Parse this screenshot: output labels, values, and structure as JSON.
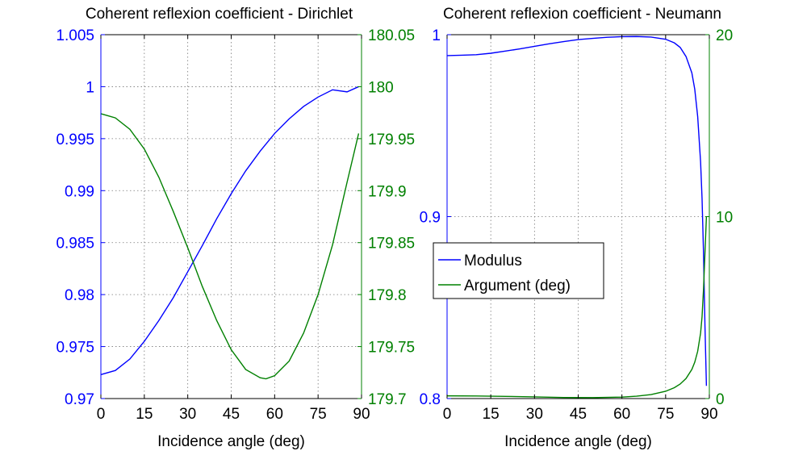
{
  "chart_data": [
    {
      "type": "line",
      "title": "Coherent reflexion coefficient - Dirichlet",
      "xlabel": "Incidence angle (deg)",
      "xlim": [
        0,
        90
      ],
      "xticks": [
        0,
        15,
        30,
        45,
        60,
        75,
        90
      ],
      "grid": true,
      "axes": {
        "left": {
          "color": "#0000ff",
          "ylim": [
            0.97,
            1.005
          ],
          "ticks": [
            0.97,
            0.975,
            0.98,
            0.985,
            0.99,
            0.995,
            1,
            1.005
          ],
          "tick_labels": [
            "0.97",
            "0.975",
            "0.98",
            "0.985",
            "0.99",
            "0.995",
            "1",
            "1.005"
          ]
        },
        "right": {
          "color": "#008000",
          "ylim": [
            179.7,
            180.05
          ],
          "ticks": [
            179.7,
            179.75,
            179.8,
            179.85,
            179.9,
            179.95,
            180,
            180.05
          ],
          "tick_labels": [
            "179.7",
            "179.75",
            "179.8",
            "179.85",
            "179.9",
            "179.95",
            "180",
            "180.05"
          ]
        }
      },
      "series": [
        {
          "axis": "left",
          "color": "#0000ff",
          "x": [
            0,
            5,
            10,
            15,
            20,
            25,
            30,
            35,
            40,
            45,
            50,
            55,
            60,
            65,
            70,
            75,
            80,
            85,
            89
          ],
          "y": [
            0.9723,
            0.9727,
            0.9738,
            0.9755,
            0.9775,
            0.9797,
            0.9822,
            0.9847,
            0.9873,
            0.9897,
            0.9919,
            0.9938,
            0.9955,
            0.9969,
            0.9981,
            0.999,
            0.9997,
            0.9995,
            1.0
          ]
        },
        {
          "axis": "right",
          "color": "#008000",
          "x": [
            0,
            5,
            10,
            15,
            20,
            25,
            30,
            35,
            40,
            45,
            50,
            55,
            57,
            60,
            65,
            70,
            75,
            80,
            85,
            89
          ],
          "y": [
            179.974,
            179.97,
            179.959,
            179.94,
            179.913,
            179.88,
            179.845,
            179.808,
            179.775,
            179.747,
            179.728,
            179.72,
            179.719,
            179.722,
            179.736,
            179.763,
            179.8,
            179.848,
            179.908,
            179.955
          ]
        }
      ]
    },
    {
      "type": "line",
      "title": "Coherent reflexion coefficient - Neumann",
      "xlabel": "Incidence angle (deg)",
      "xlim": [
        0,
        90
      ],
      "xticks": [
        0,
        15,
        30,
        45,
        60,
        75,
        90
      ],
      "grid": true,
      "legend": {
        "placement": "center-left",
        "entries": [
          {
            "label": "Modulus",
            "color": "#0000ff"
          },
          {
            "label": "Argument (deg)",
            "color": "#008000"
          }
        ]
      },
      "axes": {
        "left": {
          "color": "#0000ff",
          "ylim": [
            0.8,
            1
          ],
          "ticks": [
            0.8,
            0.9,
            1
          ],
          "tick_labels": [
            "0.8",
            "0.9",
            "1"
          ]
        },
        "right": {
          "color": "#008000",
          "ylim": [
            0,
            20
          ],
          "ticks": [
            0,
            10,
            20
          ],
          "tick_labels": [
            "0",
            "10",
            "20"
          ]
        }
      },
      "series": [
        {
          "name": "Modulus",
          "axis": "left",
          "color": "#0000ff",
          "x": [
            0,
            5,
            10,
            15,
            20,
            25,
            30,
            35,
            40,
            45,
            50,
            55,
            60,
            65,
            70,
            75,
            78,
            80,
            82,
            84,
            85,
            86,
            87,
            87.5,
            88,
            88.5,
            89
          ],
          "y": [
            0.9885,
            0.9887,
            0.989,
            0.9898,
            0.991,
            0.9922,
            0.9936,
            0.995,
            0.9962,
            0.9973,
            0.998,
            0.9986,
            0.9989,
            0.999,
            0.9987,
            0.9975,
            0.9955,
            0.993,
            0.988,
            0.979,
            0.97,
            0.955,
            0.93,
            0.91,
            0.88,
            0.84,
            0.807
          ]
        },
        {
          "name": "Argument (deg)",
          "axis": "right",
          "color": "#008000",
          "x": [
            0,
            10,
            20,
            30,
            40,
            50,
            60,
            65,
            70,
            75,
            78,
            80,
            82,
            84,
            85,
            86,
            87,
            87.5,
            88,
            88.5,
            89
          ],
          "y": [
            0.15,
            0.14,
            0.12,
            0.09,
            0.06,
            0.05,
            0.08,
            0.13,
            0.22,
            0.4,
            0.6,
            0.8,
            1.1,
            1.6,
            2.0,
            2.6,
            3.6,
            4.5,
            6.0,
            8.0,
            10.0
          ]
        }
      ]
    }
  ]
}
